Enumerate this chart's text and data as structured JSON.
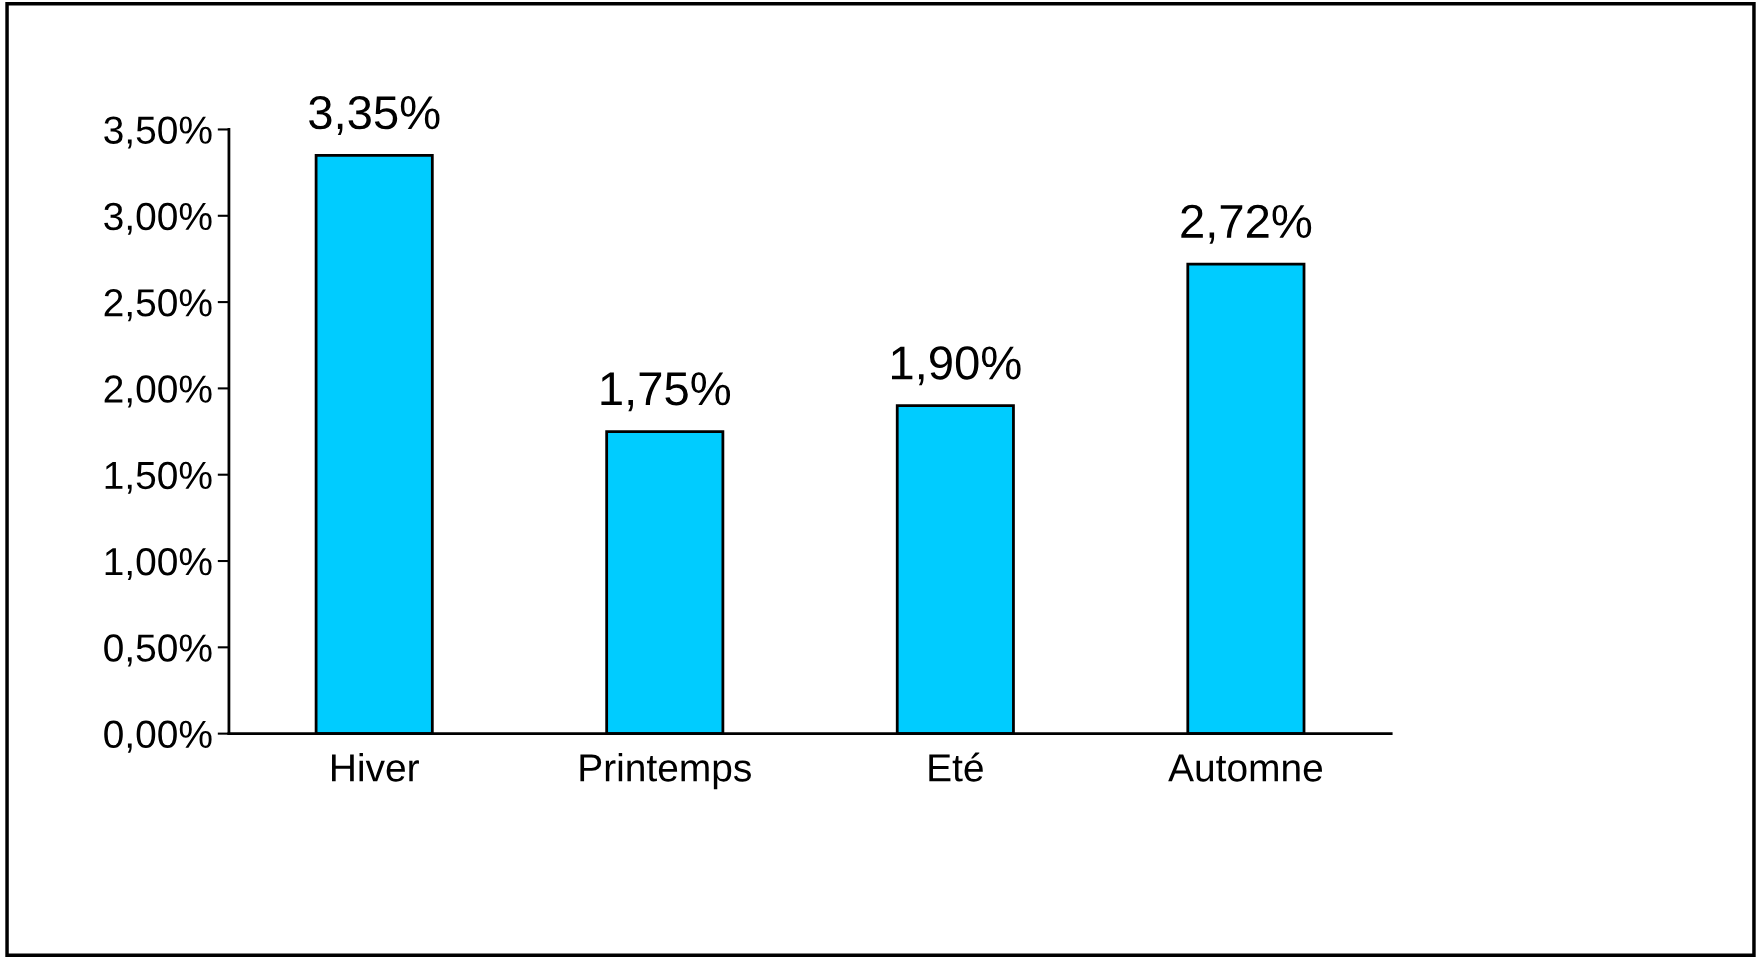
{
  "chart_data": {
    "type": "bar",
    "categories": [
      "Hiver",
      "Printemps",
      "Eté",
      "Automne"
    ],
    "values": [
      3.35,
      1.75,
      1.9,
      2.72
    ],
    "value_labels": [
      "3,35%",
      "1,75%",
      "1,90%",
      "2,72%"
    ],
    "color": "#00ccff",
    "ylim": [
      0,
      3.5
    ],
    "yticks": [
      {
        "value": 0,
        "label": "0,00%"
      },
      {
        "value": 0.5,
        "label": "0,50%"
      },
      {
        "value": 1,
        "label": "1,00%"
      },
      {
        "value": 1.5,
        "label": "1,50%"
      },
      {
        "value": 2,
        "label": "2,00%"
      },
      {
        "value": 2.5,
        "label": "2,50%"
      },
      {
        "value": 3,
        "label": "3,00%"
      },
      {
        "value": 3.5,
        "label": "3,50%"
      }
    ]
  }
}
